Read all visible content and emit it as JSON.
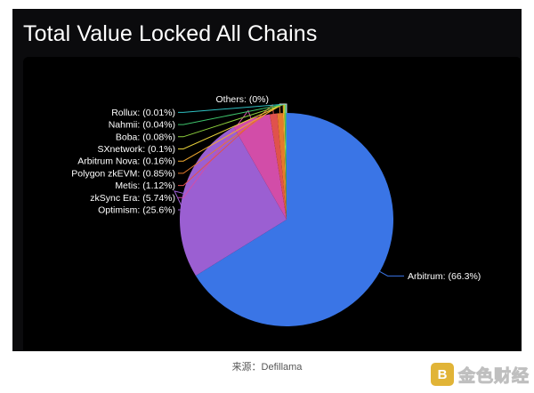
{
  "chart_data": {
    "type": "pie",
    "title": "Total Value Locked All Chains",
    "slices": [
      {
        "label": "Arbitrum",
        "value": 66.3,
        "display": "Arbitrum: (66.3%)",
        "color": "#3a75e6"
      },
      {
        "label": "Optimism",
        "value": 25.6,
        "display": "Optimism: (25.6%)",
        "color": "#9b5fd2"
      },
      {
        "label": "zkSync Era",
        "value": 5.74,
        "display": "zkSync Era: (5.74%)",
        "color": "#d24da8"
      },
      {
        "label": "Metis",
        "value": 1.12,
        "display": "Metis: (1.12%)",
        "color": "#e0524c"
      },
      {
        "label": "Polygon zkEVM",
        "value": 0.85,
        "display": "Polygon zkEVM: (0.85%)",
        "color": "#e57a2c"
      },
      {
        "label": "Arbitrum Nova",
        "value": 0.16,
        "display": "Arbitrum Nova: (0.16%)",
        "color": "#f0a930"
      },
      {
        "label": "SXnetwork",
        "value": 0.1,
        "display": "SXnetwork: (0.1%)",
        "color": "#e8d23a"
      },
      {
        "label": "Boba",
        "value": 0.08,
        "display": "Boba: (0.08%)",
        "color": "#8ed23e"
      },
      {
        "label": "Nahmii",
        "value": 0.04,
        "display": "Nahmii: (0.04%)",
        "color": "#3ec46b"
      },
      {
        "label": "Rollux",
        "value": 0.01,
        "display": "Rollux: (0.01%)",
        "color": "#2fc0c2"
      },
      {
        "label": "Others",
        "value": 0,
        "display": "Others: (0%)",
        "color": "#cfcfcf"
      }
    ]
  },
  "caption": "来源：Defillama",
  "watermark": {
    "icon": "bitcoin-b-icon",
    "badge_glyph": "B",
    "text": "金色财经",
    "color": "#e1b437"
  }
}
